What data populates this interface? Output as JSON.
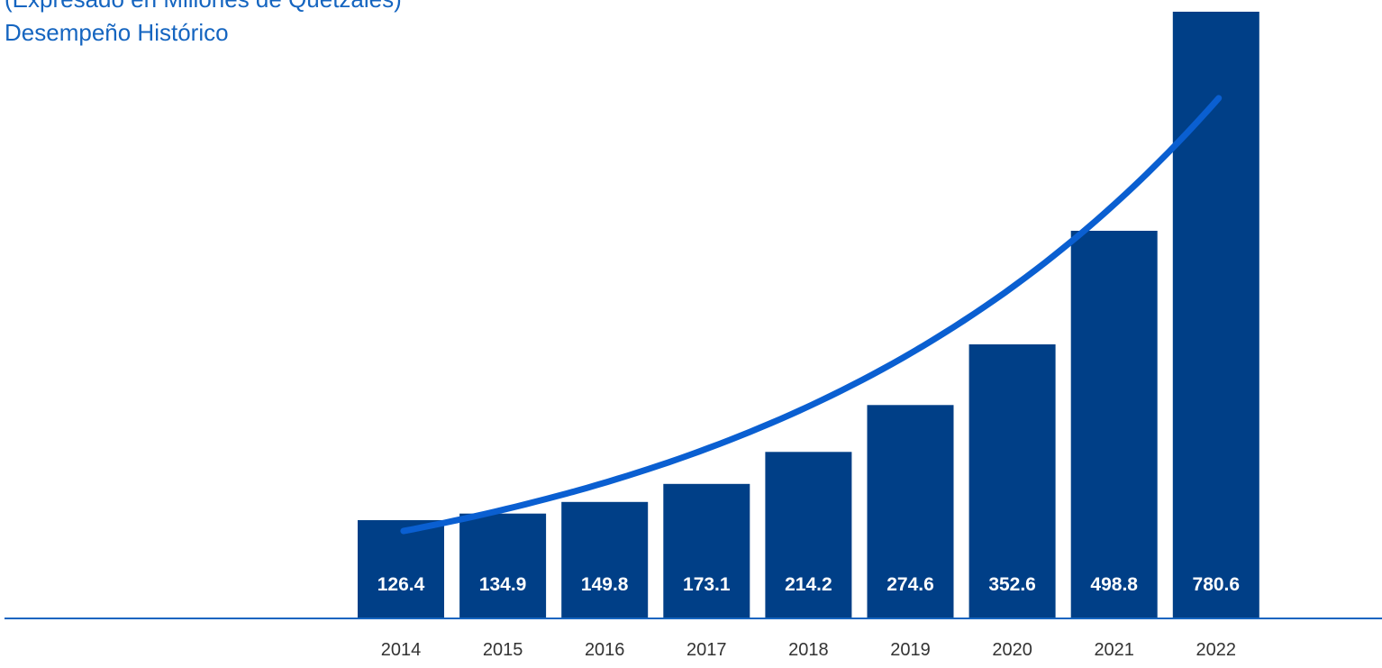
{
  "header": {
    "subtitle": "(Expresado en Millones de Quetzales)",
    "title": "Desempeño Histórico"
  },
  "colors": {
    "bar": "#003f87",
    "trend": "#0a5fd1",
    "axis": "#1565c0",
    "title": "#1565c0"
  },
  "chart_data": {
    "type": "bar",
    "title": "Desempeño Histórico",
    "subtitle": "(Expresado en Millones de Quetzales)",
    "xlabel": "",
    "ylabel": "",
    "categories": [
      "2014",
      "2015",
      "2016",
      "2017",
      "2018",
      "2019",
      "2020",
      "2021",
      "2022"
    ],
    "values": [
      126.4,
      134.9,
      149.8,
      173.1,
      214.2,
      274.6,
      352.6,
      498.8,
      780.6
    ],
    "value_labels": [
      "126.4",
      "134.9",
      "149.8",
      "173.1",
      "214.2",
      "274.6",
      "352.6",
      "498.8",
      "780.6"
    ],
    "trendline": true,
    "grid": false,
    "legend": "none"
  }
}
